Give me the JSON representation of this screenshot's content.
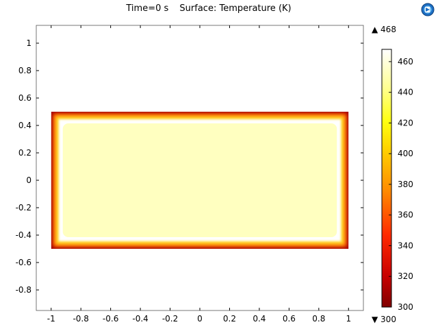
{
  "app_logo_icon": "comsol-logo-icon",
  "chart_data": {
    "type": "heatmap",
    "title_time": "Time=0 s",
    "title_surface": "Surface: Temperature (K)",
    "xlabel": "",
    "ylabel": "",
    "xlim": [
      -1.1,
      1.1
    ],
    "ylim": [
      -0.95,
      1.13
    ],
    "x_ticks": [
      "-1",
      "-0.8",
      "-0.6",
      "-0.4",
      "-0.2",
      "0",
      "0.2",
      "0.4",
      "0.6",
      "0.8",
      "1"
    ],
    "y_ticks": [
      "1",
      "0.8",
      "0.6",
      "0.4",
      "0.2",
      "0",
      "-0.2",
      "-0.4",
      "-0.6",
      "-0.8"
    ],
    "domain": {
      "x": [
        -1,
        1
      ],
      "y": [
        -0.5,
        0.5
      ]
    },
    "field": {
      "interior": 468,
      "boundary": 300
    },
    "colorbar": {
      "colormap": "heat",
      "min": 300,
      "max": 468,
      "max_label": "▲ 468",
      "min_label": "▼ 300",
      "ticks": [
        "460",
        "440",
        "420",
        "400",
        "380",
        "360",
        "340",
        "320",
        "300"
      ]
    },
    "grid": false
  }
}
